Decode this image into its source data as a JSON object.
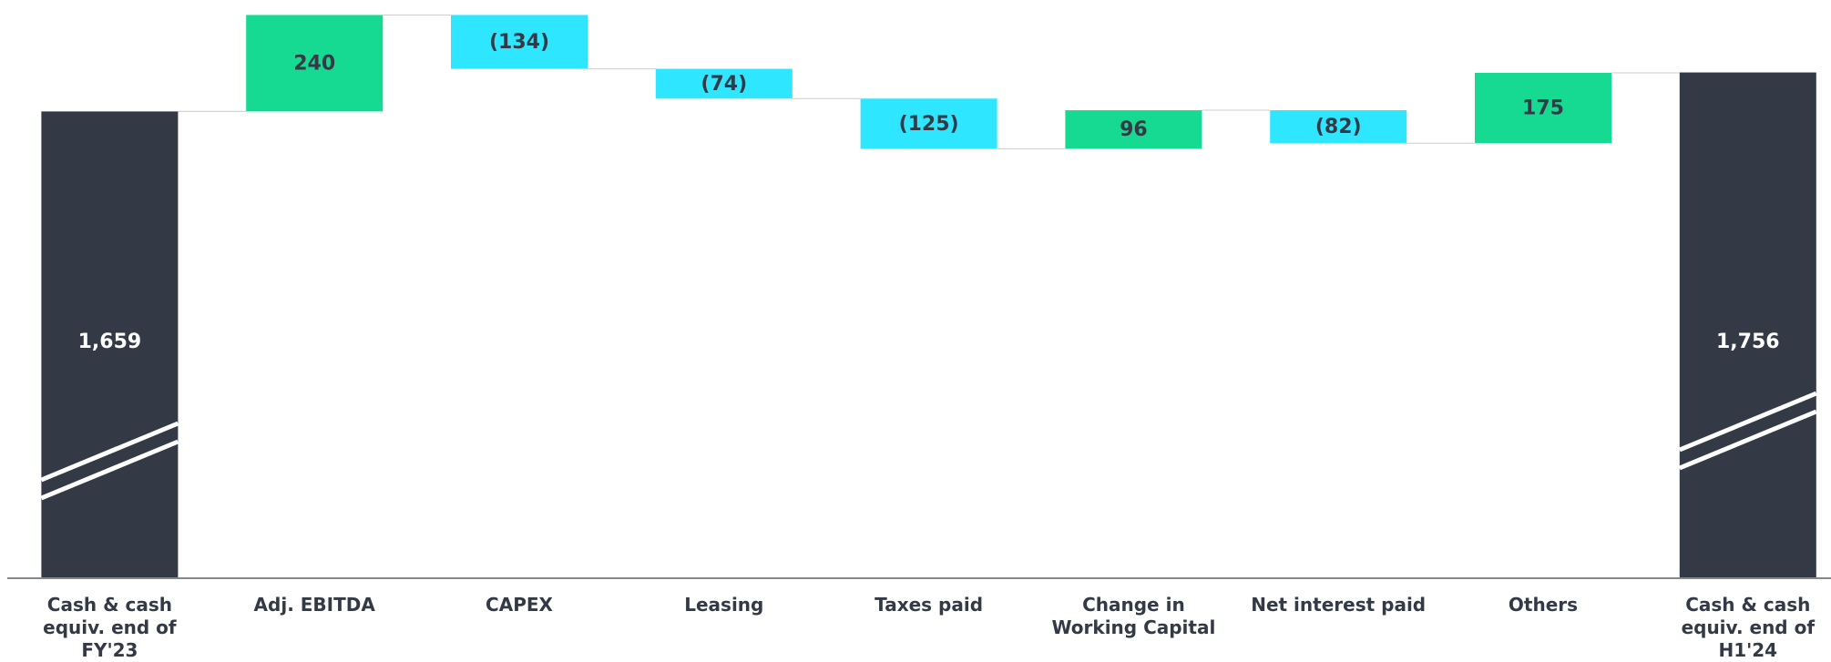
{
  "chart_data": {
    "type": "waterfall",
    "categories": [
      "Cash & cash equiv. end of FY'23",
      "Adj. EBITDA",
      "CAPEX",
      "Leasing",
      "Taxes paid",
      "Change in Working Capital",
      "Net interest paid",
      "Others",
      "Cash & cash equiv. end of H1'24"
    ],
    "values": [
      1659,
      240,
      -134,
      -74,
      -125,
      96,
      -82,
      175,
      1756
    ],
    "value_labels": [
      "1,659",
      "240",
      "(134)",
      "(74)",
      "(125)",
      "96",
      "(82)",
      "175",
      "1,756"
    ],
    "colors": {
      "total": "#343a45",
      "increase": "#16d992",
      "decrease": "#2ee6ff"
    },
    "ylim": [
      500,
      1900
    ],
    "axis_break": true
  }
}
